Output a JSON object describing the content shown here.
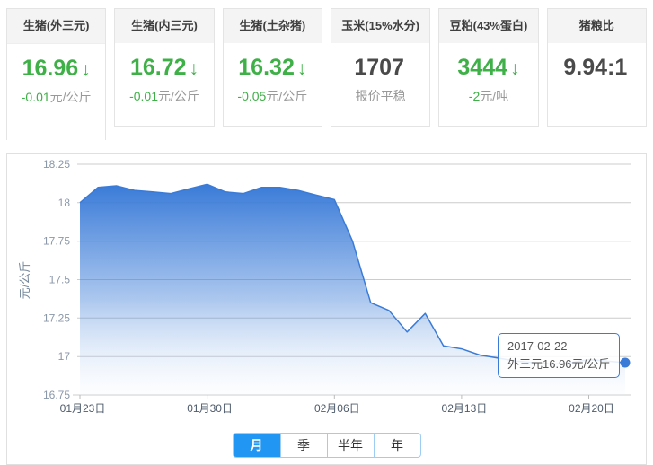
{
  "colors": {
    "green": "#3eb047",
    "value_dark": "#4a4a4a",
    "accent_blue": "#2196f3",
    "chart_blue": "#3a7bd8",
    "muted": "#999999"
  },
  "cards": [
    {
      "title": "生猪(外三元)",
      "value": "16.96",
      "arrow": "↓",
      "change": "-0.01",
      "unit": "元/公斤",
      "value_color": "#3eb047",
      "change_color": "#3eb047",
      "active": true
    },
    {
      "title": "生猪(内三元)",
      "value": "16.72",
      "arrow": "↓",
      "change": "-0.01",
      "unit": "元/公斤",
      "value_color": "#3eb047",
      "change_color": "#3eb047",
      "active": false
    },
    {
      "title": "生猪(土杂猪)",
      "value": "16.32",
      "arrow": "↓",
      "change": "-0.05",
      "unit": "元/公斤",
      "value_color": "#3eb047",
      "change_color": "#3eb047",
      "active": false
    },
    {
      "title": "玉米(15%水分)",
      "value": "1707",
      "arrow": "",
      "change": "",
      "unit": "报价平稳",
      "value_color": "#4a4a4a",
      "change_color": "#999999",
      "active": false
    },
    {
      "title": "豆粕(43%蛋白)",
      "value": "3444",
      "arrow": "↓",
      "change": "-2",
      "unit": "元/吨",
      "value_color": "#3eb047",
      "change_color": "#3eb047",
      "active": false
    },
    {
      "title": "猪粮比",
      "value": "9.94:1",
      "arrow": "",
      "change": "",
      "unit": "",
      "value_color": "#4a4a4a",
      "change_color": "#999999",
      "active": false
    }
  ],
  "tooltip": {
    "date": "2017-02-22",
    "text": "外三元16.96元/公斤"
  },
  "tabs": [
    {
      "label": "月",
      "active": true
    },
    {
      "label": "季",
      "active": false
    },
    {
      "label": "半年",
      "active": false
    },
    {
      "label": "年",
      "active": false
    }
  ],
  "chart_data": {
    "type": "area",
    "series_name": "外三元",
    "ylabel": "元/公斤",
    "ylim": [
      16.75,
      18.25
    ],
    "ytick_step": 0.25,
    "grid": true,
    "x_label_interval": 7,
    "x_labels_shown": [
      "01月23日",
      "01月30日",
      "02月06日",
      "02月13日",
      "02月20日"
    ],
    "dates": [
      "01月23日",
      "01月24日",
      "01月25日",
      "01月26日",
      "01月27日",
      "01月28日",
      "01月29日",
      "01月30日",
      "01月31日",
      "02月01日",
      "02月02日",
      "02月03日",
      "02月04日",
      "02月05日",
      "02月06日",
      "02月07日",
      "02月08日",
      "02月09日",
      "02月10日",
      "02月11日",
      "02月12日",
      "02月13日",
      "02月14日",
      "02月15日",
      "02月16日",
      "02月17日",
      "02月18日",
      "02月19日",
      "02月20日",
      "02月21日",
      "02月22日"
    ],
    "values": [
      18.0,
      18.1,
      18.11,
      18.08,
      18.07,
      18.06,
      18.09,
      18.12,
      18.07,
      18.06,
      18.1,
      18.1,
      18.08,
      18.05,
      18.02,
      17.75,
      17.35,
      17.3,
      17.16,
      17.28,
      17.07,
      17.05,
      17.01,
      16.99,
      16.97,
      16.96,
      16.95,
      16.96,
      16.98,
      16.97,
      16.96
    ],
    "line_color": "#3a7bd8",
    "area_top_color": "#3a7bd8",
    "area_bottom_color": "#eaf2fc"
  }
}
